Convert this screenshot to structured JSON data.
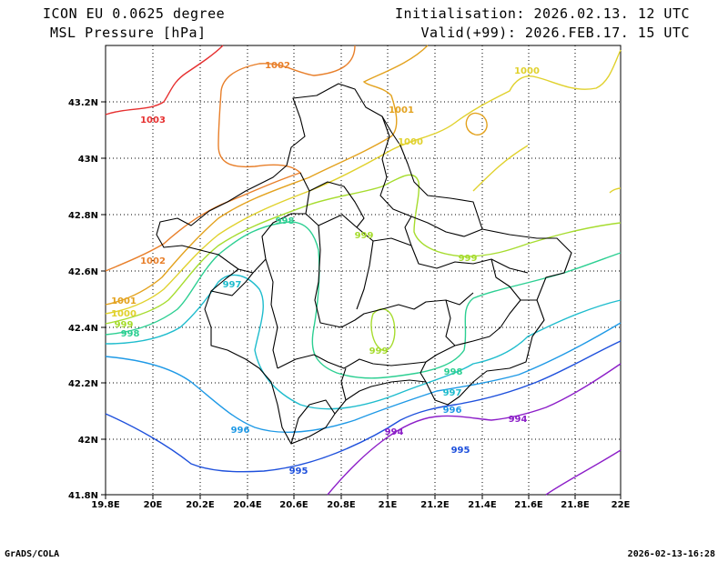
{
  "header": {
    "model": "ICON EU 0.0625 degree",
    "variable": "MSL Pressure [hPa]",
    "init": "Initialisation: 2026.02.13. 12 UTC",
    "valid": "Valid(+99): 2026.FEB.17. 15 UTC"
  },
  "footer": {
    "credit": "GrADS/COLA",
    "timestamp": "2026-02-13-16:28"
  },
  "axes": {
    "x_ticks": [
      "19.8E",
      "20E",
      "20.2E",
      "20.4E",
      "20.6E",
      "20.8E",
      "21E",
      "21.2E",
      "21.4E",
      "21.6E",
      "21.8E",
      "22E"
    ],
    "y_ticks": [
      "43.2N",
      "43N",
      "42.8N",
      "42.6N",
      "42.4N",
      "42.2N",
      "42N",
      "41.8N"
    ]
  },
  "colors": {
    "1003": "#e63030",
    "1002": "#e87f2a",
    "1001": "#e3a21e",
    "1000": "#e0d12c",
    "999": "#a6dc2e",
    "998": "#2ccf92",
    "997": "#1ebccd",
    "996": "#1e99e6",
    "995": "#1e50dc",
    "994": "#8c1ec8",
    "border": "#000000"
  },
  "contour_labels": [
    {
      "text": "1003",
      "level": "1003"
    },
    {
      "text": "1002",
      "level": "1002"
    },
    {
      "text": "1002",
      "level": "1002"
    },
    {
      "text": "1001",
      "level": "1001"
    },
    {
      "text": "1001",
      "level": "1001"
    },
    {
      "text": "1000",
      "level": "1000"
    },
    {
      "text": "1000",
      "level": "1000"
    },
    {
      "text": "1000",
      "level": "1000"
    },
    {
      "text": "999",
      "level": "999"
    },
    {
      "text": "999",
      "level": "999"
    },
    {
      "text": "999",
      "level": "999"
    },
    {
      "text": "999",
      "level": "999"
    },
    {
      "text": "998",
      "level": "998"
    },
    {
      "text": "998",
      "level": "998"
    },
    {
      "text": "998",
      "level": "998"
    },
    {
      "text": "997",
      "level": "997"
    },
    {
      "text": "997",
      "level": "997"
    },
    {
      "text": "996",
      "level": "996"
    },
    {
      "text": "996",
      "level": "996"
    },
    {
      "text": "995",
      "level": "995"
    },
    {
      "text": "995",
      "level": "995"
    },
    {
      "text": "994",
      "level": "994"
    },
    {
      "text": "994",
      "level": "994"
    }
  ]
}
